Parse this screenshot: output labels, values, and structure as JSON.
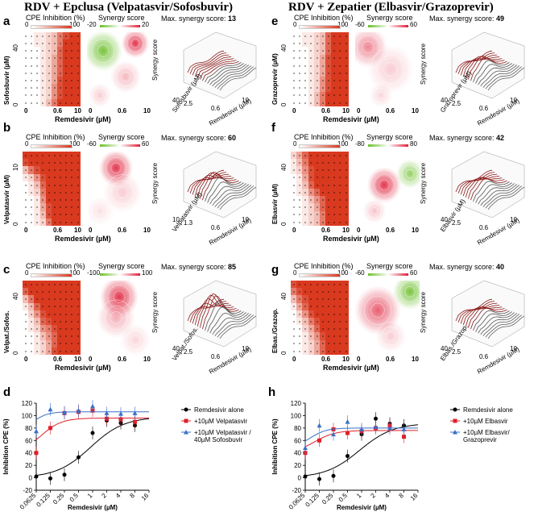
{
  "left_title": "RDV + Epclusa (Velpatasvir/Sofosbuvir)",
  "right_title": "RDV + Zepatier (Elbasvir/Grazoprevir)",
  "colors": {
    "heat_low": "#ffffff",
    "heat_high": "#d9391f",
    "syn_pos": "#e0203a",
    "syn_neg": "#6bbf2a",
    "alone": "#000000",
    "combo1": "#e0202a",
    "combo2": "#3a6fc8"
  },
  "panels": [
    {
      "id": "a",
      "letter": "a",
      "cpe_title": "CPE Inhibition (%)",
      "cpe_min": "0",
      "cpe_max": "100",
      "syn_title": "Synergy score",
      "syn_min": "-20",
      "syn_max": "20",
      "max_label": "Max. synergy score:",
      "max_value": "13",
      "ylabel": "Sofosbuvir (µM)",
      "y_ticks": [
        "0",
        "40"
      ],
      "x_ticks": [
        "0",
        "0.6",
        "10"
      ],
      "syn_x_ticks": [
        "0",
        "0.6",
        "10"
      ],
      "xlabel": "Remdesivir (µM)",
      "surf_labels": {
        "z": "Synergy score",
        "y": "Sofosbuvir (µM)",
        "x": "Remdesivir (µM)",
        "t1": "40",
        "t2": "2.5",
        "t3": "0.6",
        "t4": "10"
      },
      "synergy_peak": 13
    },
    {
      "id": "b",
      "letter": "b",
      "cpe_title": "CPE Inhibition (%)",
      "cpe_min": "0",
      "cpe_max": "100",
      "syn_title": "Synergy score",
      "syn_min": "-60",
      "syn_max": "60",
      "max_label": "Max. synergy score:",
      "max_value": "60",
      "ylabel": "Velpatasvir (µM)",
      "y_ticks": [
        "0",
        "10"
      ],
      "x_ticks": [
        "0",
        "0.6",
        "10"
      ],
      "syn_x_ticks": [
        "0",
        "0.6",
        "10"
      ],
      "xlabel": "Remdesivir (µM)",
      "surf_labels": {
        "z": "Synergy score",
        "y": "Velpatasvir (µM)",
        "x": "Remdesivir (µM)",
        "t1": "10",
        "t2": "1.3",
        "t3": "0.6",
        "t4": "10"
      },
      "synergy_peak": 60
    },
    {
      "id": "c",
      "letter": "c",
      "cpe_title": "CPE Inhibition (%)",
      "cpe_min": "0",
      "cpe_max": "100",
      "syn_title": "Synergy score",
      "syn_min": "-100",
      "syn_max": "100",
      "max_label": "Max. synergy score:",
      "max_value": "85",
      "ylabel": "Velpat./Sofos.",
      "y_ticks": [
        "0",
        "40"
      ],
      "x_ticks": [
        "0",
        "0.6",
        "10"
      ],
      "syn_x_ticks": [
        "0",
        "0.6",
        "10"
      ],
      "xlabel": "Remdesivir (µM)",
      "surf_labels": {
        "z": "Synergy score",
        "y": "Velpat./Sofos.",
        "x": "Remdesivir (µM)",
        "t1": "40",
        "t2": "2.5",
        "t3": "0.6",
        "t4": "10"
      },
      "synergy_peak": 85
    },
    {
      "id": "e",
      "letter": "e",
      "cpe_title": "CPE Inhibition (%)",
      "cpe_min": "0",
      "cpe_max": "100",
      "syn_title": "Synergy score",
      "syn_min": "-60",
      "syn_max": "60",
      "max_label": "Max. synergy score:",
      "max_value": "49",
      "ylabel": "Grazoprevir (µM)",
      "y_ticks": [
        "0",
        "40"
      ],
      "x_ticks": [
        "0",
        "0.6",
        "10"
      ],
      "syn_x_ticks": [
        "0",
        "0.6",
        "10"
      ],
      "xlabel": "Remdesivir (µM)",
      "surf_labels": {
        "z": "Synergy score",
        "y": "Grazoprevir (µM)",
        "x": "Remdesivir (µM)",
        "t1": "40",
        "t2": "2.5",
        "t3": "0.6",
        "t4": "10"
      },
      "synergy_peak": 49
    },
    {
      "id": "f",
      "letter": "f",
      "cpe_title": "CPE Inhibition (%)",
      "cpe_min": "0",
      "cpe_max": "100",
      "syn_title": "Synergy score",
      "syn_min": "-80",
      "syn_max": "80",
      "max_label": "Max. synergy score:",
      "max_value": "42",
      "ylabel": "Elbasvir (µM)",
      "y_ticks": [
        "0",
        "40"
      ],
      "x_ticks": [
        "0",
        "0.6",
        "10"
      ],
      "syn_x_ticks": [
        "0",
        "0.6",
        "10"
      ],
      "xlabel": "Remdesivir (µM)",
      "surf_labels": {
        "z": "Synergy score",
        "y": "Elbasvir (µM)",
        "x": "Remdesivir (µM)",
        "t1": "40",
        "t2": "2.5",
        "t3": "0.6",
        "t4": "10"
      },
      "synergy_peak": 42
    },
    {
      "id": "g",
      "letter": "g",
      "cpe_title": "CPE Inhibition (%)",
      "cpe_min": "0",
      "cpe_max": "100",
      "syn_title": "Synergy score",
      "syn_min": "-60",
      "syn_max": "60",
      "max_label": "Max. synergy score:",
      "max_value": "40",
      "ylabel": "Elbas./Grazop.",
      "y_ticks": [
        "0",
        "40"
      ],
      "x_ticks": [
        "0",
        "0.6",
        "10"
      ],
      "syn_x_ticks": [
        "0",
        "0.6",
        "10"
      ],
      "xlabel": "Remdesivir (µM)",
      "surf_labels": {
        "z": "Synergy score",
        "y": "Elbas./Grazop.",
        "x": "Remdesivir (µM)",
        "t1": "40",
        "t2": "2.5",
        "t3": "0.6",
        "t4": "10"
      },
      "synergy_peak": 40
    }
  ],
  "chart_data": [
    {
      "id": "d",
      "type": "scatter",
      "panel_letter": "d",
      "title": "",
      "xlabel": "Remdesivir (µM)",
      "ylabel": "Inhibition CPE (%)",
      "x_ticks": [
        "0.0625",
        "0.125",
        "0.25",
        "0.5",
        "1",
        "2",
        "4",
        "8",
        "16"
      ],
      "y_ticks": [
        "-20",
        "0",
        "20",
        "40",
        "60",
        "80",
        "100",
        "120"
      ],
      "ylim": [
        -20,
        120
      ],
      "series": [
        {
          "name": "Remdesivir alone",
          "marker": "circle",
          "x": [
            0.0625,
            0.125,
            0.25,
            0.5,
            1,
            2,
            4,
            8
          ],
          "values": [
            2,
            -1,
            5,
            33,
            72,
            92,
            88,
            84
          ],
          "fit": [
            0.0625,
            0,
            0.9,
            1.2,
            98
          ]
        },
        {
          "name": "+10µM Velpatasvir",
          "marker": "square",
          "x": [
            0.0625,
            0.125,
            0.25,
            0.5,
            1,
            2,
            4,
            8
          ],
          "values": [
            40,
            80,
            104,
            106,
            108,
            95,
            94,
            90
          ],
          "fit": [
            0.03,
            40,
            0.08,
            2,
            96
          ]
        },
        {
          "name": "+10µM  Velpatasvir / 40µM Sofosbuvir",
          "marker": "triangle",
          "x": [
            0.0625,
            0.125,
            0.25,
            0.5,
            1,
            2,
            4,
            8
          ],
          "values": [
            75,
            110,
            105,
            108,
            115,
            104,
            103,
            104
          ],
          "fit": [
            0.03,
            80,
            0.06,
            3,
            106
          ]
        }
      ]
    },
    {
      "id": "h",
      "type": "scatter",
      "panel_letter": "h",
      "title": "",
      "xlabel": "Remdesivir (µM)",
      "ylabel": "Inhibition CPE (%)",
      "x_ticks": [
        "0.0625",
        "0.125",
        "0.25",
        "0.5",
        "1",
        "2",
        "4",
        "8",
        "16"
      ],
      "y_ticks": [
        "-20",
        "0",
        "20",
        "40",
        "60",
        "80",
        "100",
        "120"
      ],
      "ylim": [
        -20,
        120
      ],
      "series": [
        {
          "name": "Remdesivir alone",
          "marker": "circle",
          "x": [
            0.0625,
            0.125,
            0.25,
            0.5,
            1,
            2,
            4,
            8
          ],
          "values": [
            2,
            -2,
            3,
            35,
            70,
            95,
            87,
            84
          ],
          "fit": [
            0.0625,
            0,
            0.9,
            1.2,
            88
          ]
        },
        {
          "name": "+10µM Elbasvir",
          "marker": "square",
          "x": [
            0.0625,
            0.125,
            0.25,
            0.5,
            1,
            2,
            4,
            8
          ],
          "values": [
            40,
            60,
            78,
            72,
            75,
            80,
            84,
            66
          ],
          "fit": [
            0.03,
            40,
            0.1,
            2,
            76
          ]
        },
        {
          "name": "+10µM Elbasvir/Grazoprevir",
          "marker": "triangle",
          "x": [
            0.0625,
            0.125,
            0.25,
            0.5,
            1,
            2,
            4,
            8
          ],
          "values": [
            48,
            84,
            70,
            90,
            78,
            82,
            80,
            78
          ],
          "fit": [
            0.03,
            48,
            0.08,
            2.5,
            80
          ]
        }
      ]
    }
  ]
}
